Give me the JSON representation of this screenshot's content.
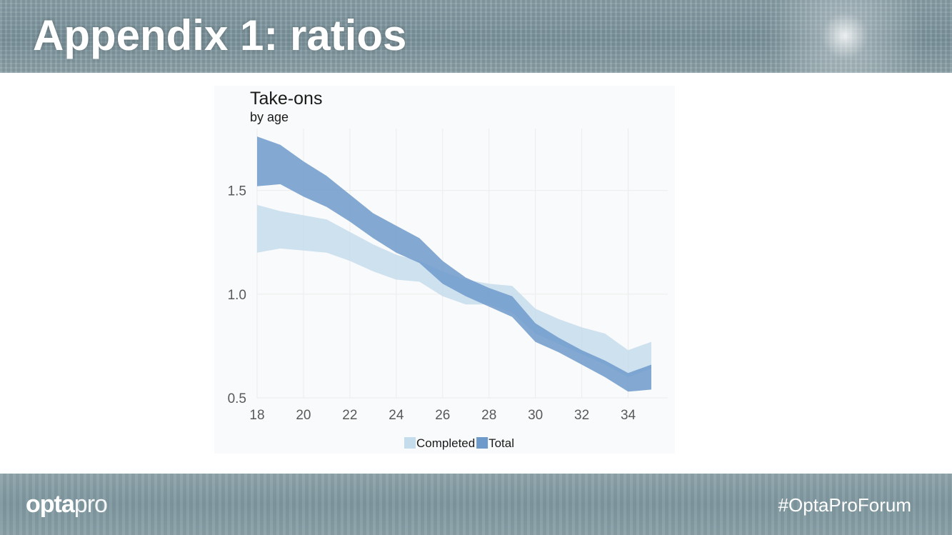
{
  "slide": {
    "title": "Appendix 1: ratios",
    "hashtag": "#OptaProForum",
    "logo": {
      "bold": "opta",
      "light": "pro"
    }
  },
  "colors": {
    "completed": "#c5dcec",
    "total": "#6e9acb",
    "axis_text": "#595959",
    "grid": "#ececec",
    "banner": "#84999f"
  },
  "chart_data": {
    "type": "area",
    "title": "Take-ons",
    "subtitle": "by age",
    "xlabel": "",
    "ylabel": "",
    "xlim": [
      18,
      35
    ],
    "ylim": [
      0.5,
      1.75
    ],
    "x_ticks": [
      18,
      20,
      22,
      24,
      26,
      28,
      30,
      32,
      34
    ],
    "y_ticks": [
      0.5,
      1.0,
      1.5
    ],
    "grid": true,
    "legend_position": "bottom",
    "x": [
      18,
      19,
      20,
      21,
      22,
      23,
      24,
      25,
      26,
      27,
      28,
      29,
      30,
      31,
      32,
      33,
      34,
      35
    ],
    "series": [
      {
        "name": "Completed",
        "color": "#c5dcec",
        "upper": [
          1.43,
          1.4,
          1.38,
          1.36,
          1.3,
          1.24,
          1.19,
          1.16,
          1.11,
          1.07,
          1.05,
          1.04,
          0.93,
          0.88,
          0.84,
          0.81,
          0.73,
          0.77
        ],
        "lower": [
          1.2,
          1.22,
          1.21,
          1.2,
          1.16,
          1.11,
          1.07,
          1.06,
          0.99,
          0.95,
          0.95,
          0.91,
          0.81,
          0.76,
          0.71,
          0.66,
          0.6,
          0.64
        ]
      },
      {
        "name": "Total",
        "color": "#6e9acb",
        "upper": [
          1.76,
          1.72,
          1.64,
          1.57,
          1.48,
          1.39,
          1.33,
          1.27,
          1.16,
          1.08,
          1.03,
          0.99,
          0.86,
          0.79,
          0.73,
          0.68,
          0.62,
          0.66
        ],
        "lower": [
          1.52,
          1.53,
          1.47,
          1.42,
          1.35,
          1.27,
          1.2,
          1.15,
          1.05,
          0.99,
          0.94,
          0.89,
          0.77,
          0.72,
          0.66,
          0.6,
          0.53,
          0.54
        ]
      }
    ]
  }
}
